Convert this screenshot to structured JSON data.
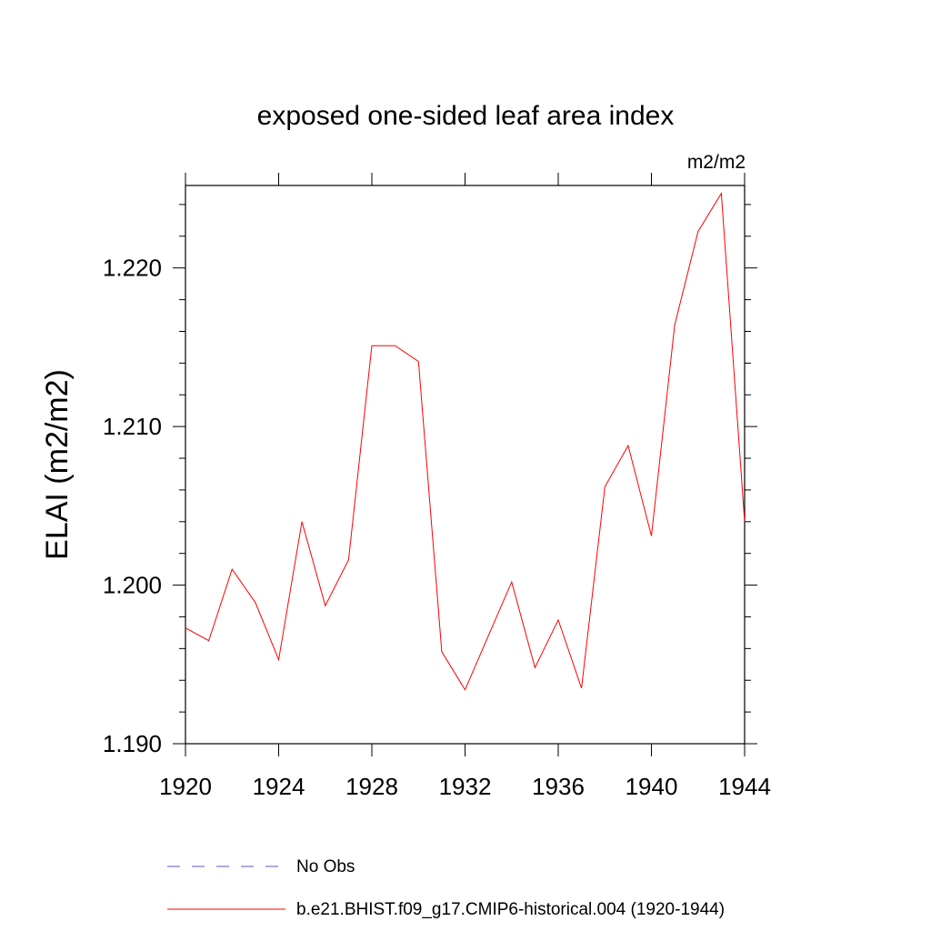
{
  "chart_data": {
    "type": "line",
    "title": "exposed one-sided leaf area index",
    "units_label": "m2/m2",
    "ylabel": "ELAI  (m2/m2)",
    "xlabel": "",
    "xlim": [
      1920,
      1944
    ],
    "ylim": [
      1.19,
      1.2252
    ],
    "x_ticks": [
      1920,
      1924,
      1928,
      1932,
      1936,
      1940,
      1944
    ],
    "x_tick_labels": [
      "1920",
      "1924",
      "1928",
      "1932",
      "1936",
      "1940",
      "1944"
    ],
    "y_ticks": [
      1.19,
      1.2,
      1.21,
      1.22
    ],
    "y_tick_labels": [
      "1.190",
      "1.200",
      "1.210",
      "1.220"
    ],
    "y_minor_step": 0.002,
    "grid": false,
    "legend_position": "bottom",
    "series": [
      {
        "name": "No Obs",
        "color": "#7b7bd0",
        "dash": "dashed",
        "x": [],
        "values": []
      },
      {
        "name": "b.e21.BHIST.f09_g17.CMIP6-historical.004 (1920-1944)",
        "color": "#ff0000",
        "dash": "solid",
        "x": [
          1920,
          1921,
          1922,
          1923,
          1924,
          1925,
          1926,
          1927,
          1928,
          1929,
          1930,
          1931,
          1932,
          1933,
          1934,
          1935,
          1936,
          1937,
          1938,
          1939,
          1940,
          1941,
          1942,
          1943,
          1944
        ],
        "values": [
          1.1973,
          1.1965,
          1.201,
          1.1989,
          1.1953,
          1.204,
          1.1987,
          1.2016,
          1.2151,
          1.2151,
          1.2141,
          1.1958,
          1.1934,
          1.1968,
          1.2002,
          1.1948,
          1.1978,
          1.1935,
          1.2062,
          1.2088,
          1.2031,
          1.2164,
          1.2223,
          1.2247,
          1.204
        ]
      }
    ]
  }
}
